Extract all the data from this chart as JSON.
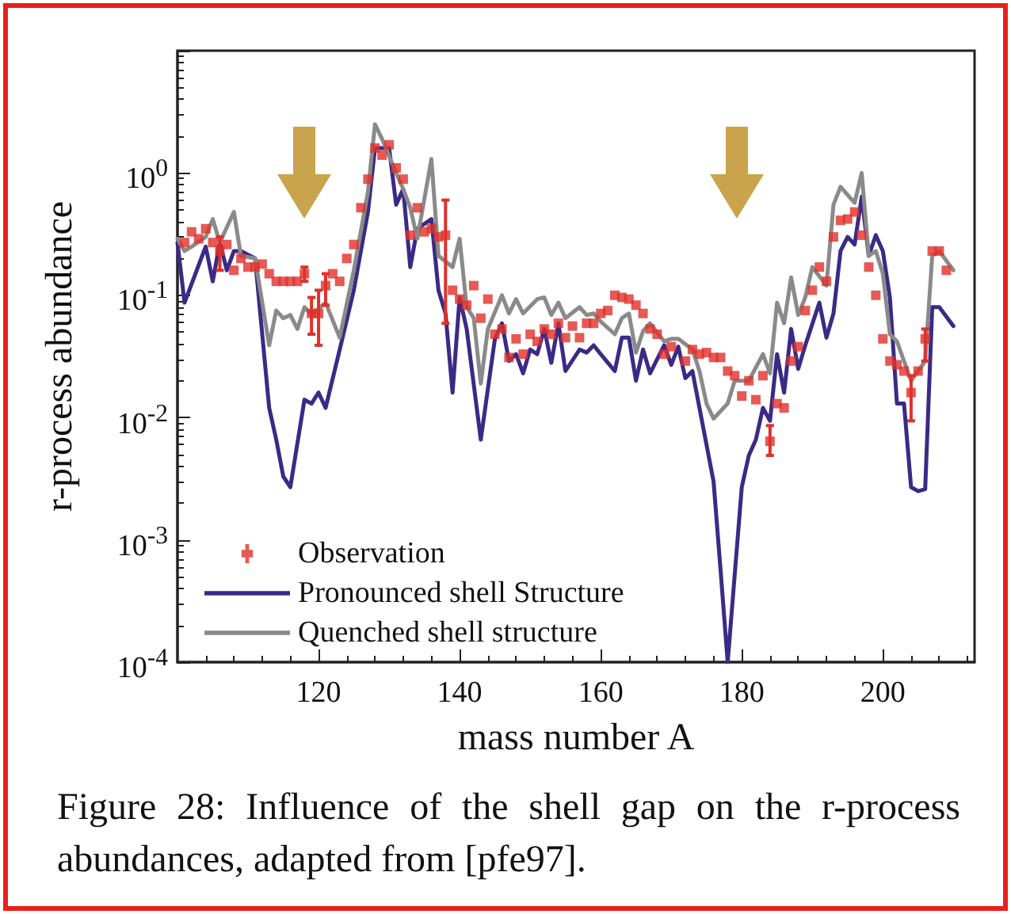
{
  "chart_data": {
    "type": "line",
    "xlabel": "mass number A",
    "ylabel": "r-process abundance",
    "annotations": [
      "Figure 28: Influence of the shell gap on the r-process abundances, adapted from [pfe97]."
    ],
    "log": "y",
    "xlim": [
      100,
      213
    ],
    "xticks": [
      120,
      140,
      160,
      180,
      200
    ],
    "ylim": [
      0.0001,
      10
    ],
    "yticks": [
      {
        "value": 0.0001,
        "label": "10$^{-4}$"
      },
      {
        "value": 0.001,
        "label": "10$^{-3}$"
      },
      {
        "value": 0.01,
        "label": "10$^{-2}$"
      },
      {
        "value": 0.1,
        "label": "10$^{-1}$"
      },
      {
        "value": 1,
        "label": "10$^{0}$"
      },
      {
        "value": 10,
        "label": null
      }
    ],
    "grid": false,
    "legend": "bottom left",
    "series": [
      {
        "name": "Observation",
        "type": "scatter",
        "marker": "square",
        "color": "#e0302a",
        "x": [
          101,
          102,
          103,
          104,
          105,
          106,
          107,
          108,
          109,
          110,
          111,
          112,
          113,
          114,
          115,
          116,
          117,
          118,
          119,
          120,
          121,
          122,
          123,
          124,
          125,
          126,
          127,
          128,
          129,
          130,
          131,
          132,
          133,
          134,
          135,
          136,
          137,
          138,
          139,
          140,
          141,
          142,
          143,
          144,
          145,
          146,
          147,
          148,
          149,
          150,
          151,
          152,
          153,
          154,
          155,
          156,
          157,
          158,
          159,
          160,
          161,
          162,
          163,
          164,
          165,
          166,
          167,
          168,
          169,
          170,
          172,
          173,
          174,
          175,
          176,
          177,
          178,
          179,
          180,
          181,
          182,
          183,
          184,
          185,
          186,
          187,
          188,
          189,
          190,
          191,
          192,
          193,
          194,
          195,
          196,
          197,
          198,
          199,
          200,
          201,
          202,
          203,
          204,
          205,
          206,
          207,
          208,
          209
        ],
        "values": [
          0.27,
          0.33,
          0.29,
          0.35,
          0.27,
          0.23,
          0.26,
          0.16,
          0.2,
          0.17,
          0.17,
          0.18,
          0.15,
          0.13,
          0.13,
          0.13,
          0.13,
          0.15,
          0.071,
          0.071,
          0.12,
          0.15,
          0.13,
          0.2,
          0.26,
          0.52,
          0.89,
          1.6,
          1.4,
          1.7,
          1.1,
          0.89,
          0.31,
          0.52,
          0.33,
          0.35,
          0.3,
          0.31,
          0.11,
          0.093,
          0.083,
          0.12,
          0.065,
          0.093,
          0.048,
          0.053,
          0.031,
          0.044,
          0.033,
          0.048,
          0.042,
          0.053,
          0.048,
          0.059,
          0.045,
          0.056,
          0.045,
          0.059,
          0.059,
          0.071,
          0.075,
          0.1,
          0.096,
          0.093,
          0.083,
          0.071,
          0.053,
          0.048,
          0.033,
          0.038,
          0.029,
          0.036,
          0.033,
          0.034,
          0.031,
          0.031,
          0.024,
          0.022,
          0.015,
          0.02,
          0.014,
          0.022,
          0.0064,
          0.013,
          0.012,
          0.029,
          0.038,
          0.075,
          0.11,
          0.17,
          0.13,
          0.3,
          0.41,
          0.42,
          0.48,
          0.31,
          0.17,
          0.1,
          0.044,
          0.029,
          0.027,
          0.024,
          0.016,
          0.024,
          0.044,
          0.23,
          0.23,
          0.16
        ],
        "errors": [
          null,
          null,
          null,
          null,
          null,
          [
            0.16,
            0.3
          ],
          null,
          null,
          null,
          null,
          null,
          null,
          null,
          null,
          null,
          null,
          null,
          [
            0.13,
            0.17
          ],
          [
            0.048,
            0.096
          ],
          [
            0.039,
            0.11
          ],
          [
            0.083,
            0.15
          ],
          null,
          null,
          null,
          null,
          null,
          null,
          null,
          null,
          null,
          null,
          null,
          null,
          null,
          null,
          null,
          null,
          [
            0.059,
            0.6
          ],
          null,
          null,
          null,
          null,
          null,
          null,
          null,
          null,
          null,
          null,
          null,
          null,
          null,
          null,
          null,
          null,
          null,
          null,
          null,
          null,
          null,
          null,
          null,
          null,
          null,
          null,
          null,
          null,
          null,
          null,
          null,
          null,
          null,
          null,
          null,
          null,
          null,
          null,
          null,
          null,
          null,
          null,
          null,
          null,
          [
            0.0049,
            0.0086
          ],
          null,
          null,
          null,
          null,
          null,
          null,
          null,
          null,
          null,
          null,
          null,
          null,
          null,
          null,
          null,
          null,
          null,
          null,
          null,
          [
            0.0094,
            0.022
          ],
          null,
          [
            0.029,
            0.053
          ],
          null,
          null,
          null
        ]
      },
      {
        "name": "Pronounced shell Structure",
        "marker": "none",
        "color": "#3b2a85",
        "x": [
          100,
          101,
          104,
          105,
          106,
          107,
          108,
          109,
          111,
          113,
          114,
          115,
          116,
          118,
          119,
          120,
          121,
          123,
          125,
          127,
          128,
          130,
          131,
          132,
          133,
          134,
          136,
          137,
          138,
          139,
          140,
          141,
          143,
          145,
          146,
          147,
          148,
          149,
          150,
          151,
          152,
          153,
          154,
          155,
          157,
          158,
          159,
          160,
          162,
          163,
          164,
          165,
          166,
          167,
          169,
          170,
          171,
          172,
          173,
          174,
          176,
          177,
          178,
          180,
          181,
          182,
          183,
          184,
          185,
          186,
          187,
          188,
          189,
          191,
          192,
          193,
          194,
          195,
          196,
          197,
          198,
          199,
          200,
          201,
          202,
          203,
          204,
          205,
          206,
          207,
          208,
          210
        ],
        "values": [
          0.27,
          0.087,
          0.25,
          0.13,
          0.27,
          0.16,
          0.23,
          0.23,
          0.2,
          0.012,
          0.0066,
          0.0033,
          0.0027,
          0.014,
          0.013,
          0.016,
          0.012,
          0.036,
          0.11,
          0.48,
          1.6,
          1.6,
          0.55,
          0.74,
          0.17,
          0.35,
          0.42,
          0.11,
          0.071,
          0.016,
          0.096,
          0.053,
          0.0066,
          0.044,
          0.059,
          0.029,
          0.033,
          0.023,
          0.036,
          0.033,
          0.053,
          0.028,
          0.059,
          0.024,
          0.036,
          0.034,
          0.039,
          0.033,
          0.024,
          0.045,
          0.045,
          0.02,
          0.036,
          0.023,
          0.039,
          0.027,
          0.038,
          0.021,
          0.024,
          0.012,
          0.003,
          0.00056,
          0.0001,
          0.0027,
          0.0049,
          0.0066,
          0.012,
          0.0094,
          0.033,
          0.016,
          0.053,
          0.025,
          0.039,
          0.087,
          0.045,
          0.071,
          0.23,
          0.3,
          0.26,
          0.64,
          0.21,
          0.31,
          0.23,
          0.096,
          0.013,
          0.013,
          0.0027,
          0.0025,
          0.0026,
          0.08,
          0.08,
          0.056
        ]
      },
      {
        "name": "Quenched shell structure",
        "marker": "none",
        "color": "#8a8a8a",
        "x": [
          100,
          101,
          102,
          104,
          105,
          106,
          108,
          109,
          111,
          113,
          114,
          115,
          116,
          117,
          118,
          119,
          121,
          123,
          125,
          127,
          128,
          129,
          131,
          132,
          133,
          134,
          136,
          137,
          139,
          140,
          141,
          142,
          143,
          144,
          146,
          147,
          148,
          149,
          151,
          152,
          153,
          154,
          155,
          157,
          158,
          159,
          160,
          162,
          163,
          164,
          165,
          166,
          167,
          169,
          170,
          171,
          173,
          174,
          175,
          176,
          178,
          179,
          181,
          183,
          184,
          185,
          186,
          187,
          188,
          189,
          190,
          192,
          193,
          194,
          196,
          197,
          198,
          199,
          200,
          201,
          202,
          204,
          206,
          207,
          208,
          210
        ],
        "values": [
          0.29,
          0.23,
          0.25,
          0.3,
          0.42,
          0.27,
          0.48,
          0.21,
          0.2,
          0.039,
          0.075,
          0.065,
          0.069,
          0.053,
          0.08,
          0.069,
          0.087,
          0.045,
          0.16,
          0.7,
          2.5,
          1.9,
          1.0,
          0.74,
          0.52,
          0.29,
          1.3,
          0.21,
          0.17,
          0.29,
          0.08,
          0.065,
          0.019,
          0.053,
          0.1,
          0.071,
          0.093,
          0.071,
          0.093,
          0.096,
          0.069,
          0.087,
          0.065,
          0.08,
          0.069,
          0.071,
          0.061,
          0.048,
          0.065,
          0.071,
          0.034,
          0.051,
          0.059,
          0.042,
          0.044,
          0.044,
          0.036,
          0.024,
          0.013,
          0.0098,
          0.013,
          0.02,
          0.02,
          0.033,
          0.023,
          0.087,
          0.059,
          0.14,
          0.069,
          0.096,
          0.17,
          0.12,
          0.55,
          0.77,
          0.57,
          1.0,
          0.21,
          0.23,
          0.15,
          0.048,
          0.042,
          0.02,
          0.029,
          0.21,
          0.23,
          0.16
        ]
      }
    ]
  }
}
